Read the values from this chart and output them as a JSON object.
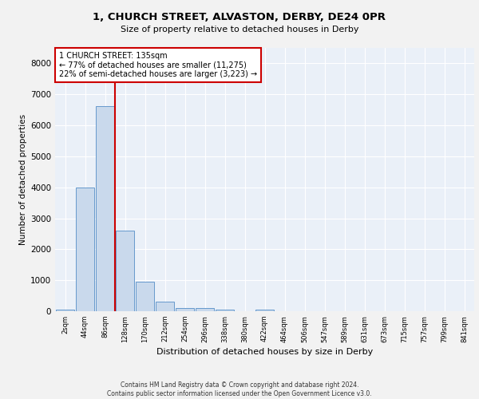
{
  "title1": "1, CHURCH STREET, ALVASTON, DERBY, DE24 0PR",
  "title2": "Size of property relative to detached houses in Derby",
  "xlabel": "Distribution of detached houses by size in Derby",
  "ylabel": "Number of detached properties",
  "bin_labels": [
    "2sqm",
    "44sqm",
    "86sqm",
    "128sqm",
    "170sqm",
    "212sqm",
    "254sqm",
    "296sqm",
    "338sqm",
    "380sqm",
    "422sqm",
    "464sqm",
    "506sqm",
    "547sqm",
    "589sqm",
    "631sqm",
    "673sqm",
    "715sqm",
    "757sqm",
    "799sqm",
    "841sqm"
  ],
  "bar_heights": [
    60,
    3980,
    6610,
    2610,
    950,
    310,
    110,
    100,
    60,
    0,
    60,
    0,
    0,
    0,
    0,
    0,
    0,
    0,
    0,
    0,
    0
  ],
  "bar_color": "#c9d9ec",
  "bar_edge_color": "#6699cc",
  "vline_index": 3,
  "annotation_title": "1 CHURCH STREET: 135sqm",
  "annotation_line1": "← 77% of detached houses are smaller (11,275)",
  "annotation_line2": "22% of semi-detached houses are larger (3,223) →",
  "annotation_box_color": "#ffffff",
  "annotation_box_edge_color": "#cc0000",
  "vline_color": "#cc0000",
  "ylim": [
    0,
    8500
  ],
  "yticks": [
    0,
    1000,
    2000,
    3000,
    4000,
    5000,
    6000,
    7000,
    8000
  ],
  "footer1": "Contains HM Land Registry data © Crown copyright and database right 2024.",
  "footer2": "Contains public sector information licensed under the Open Government Licence v3.0.",
  "plot_bg_color": "#eaf0f8",
  "fig_bg_color": "#f2f2f2",
  "grid_color": "#ffffff"
}
